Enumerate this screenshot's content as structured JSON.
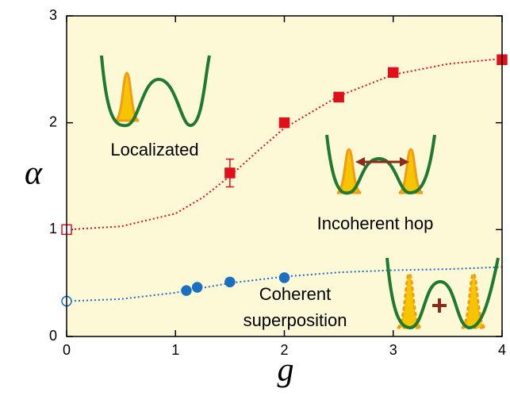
{
  "chart_data": {
    "type": "scatter",
    "xlabel": "g",
    "ylabel": "α",
    "xlim": [
      0,
      4
    ],
    "ylim": [
      0,
      3
    ],
    "xticks": [
      0,
      1,
      2,
      3,
      4
    ],
    "yticks": [
      0,
      1,
      2,
      3
    ],
    "background": "#fdf8d6",
    "annotations": [
      "Localizated",
      "Incoherent hop",
      "Coherent",
      "superposition"
    ],
    "series": [
      {
        "color": "#e0101a",
        "style": "dotted-line",
        "x": [
          0,
          0.5,
          1,
          1.25,
          1.5,
          1.75,
          2,
          2.5,
          3,
          3.5,
          4
        ],
        "values": [
          1.0,
          1.03,
          1.15,
          1.3,
          1.5,
          1.73,
          1.95,
          2.25,
          2.45,
          2.55,
          2.6
        ]
      },
      {
        "color": "#e0101a",
        "style": "open-square",
        "x": [
          0
        ],
        "values": [
          1.0
        ]
      },
      {
        "color": "#e0101a",
        "style": "square",
        "x": [
          1.5,
          2,
          2.5,
          3,
          4
        ],
        "values": [
          1.53,
          2.0,
          2.24,
          2.47,
          2.59
        ],
        "errors": [
          0.13,
          null,
          null,
          null,
          null
        ]
      },
      {
        "color": "#1a6fc0",
        "style": "dotted-line",
        "x": [
          0,
          0.5,
          1,
          1.5,
          2,
          2.5,
          3,
          3.5,
          4
        ],
        "values": [
          0.33,
          0.35,
          0.41,
          0.5,
          0.56,
          0.6,
          0.62,
          0.63,
          0.65
        ]
      },
      {
        "color": "#1a6fc0",
        "style": "open-circle",
        "x": [
          0
        ],
        "values": [
          0.33
        ]
      },
      {
        "color": "#1a6fc0",
        "style": "circle",
        "x": [
          1.1,
          1.2,
          1.5,
          2
        ],
        "values": [
          0.43,
          0.46,
          0.51,
          0.55
        ]
      }
    ]
  }
}
